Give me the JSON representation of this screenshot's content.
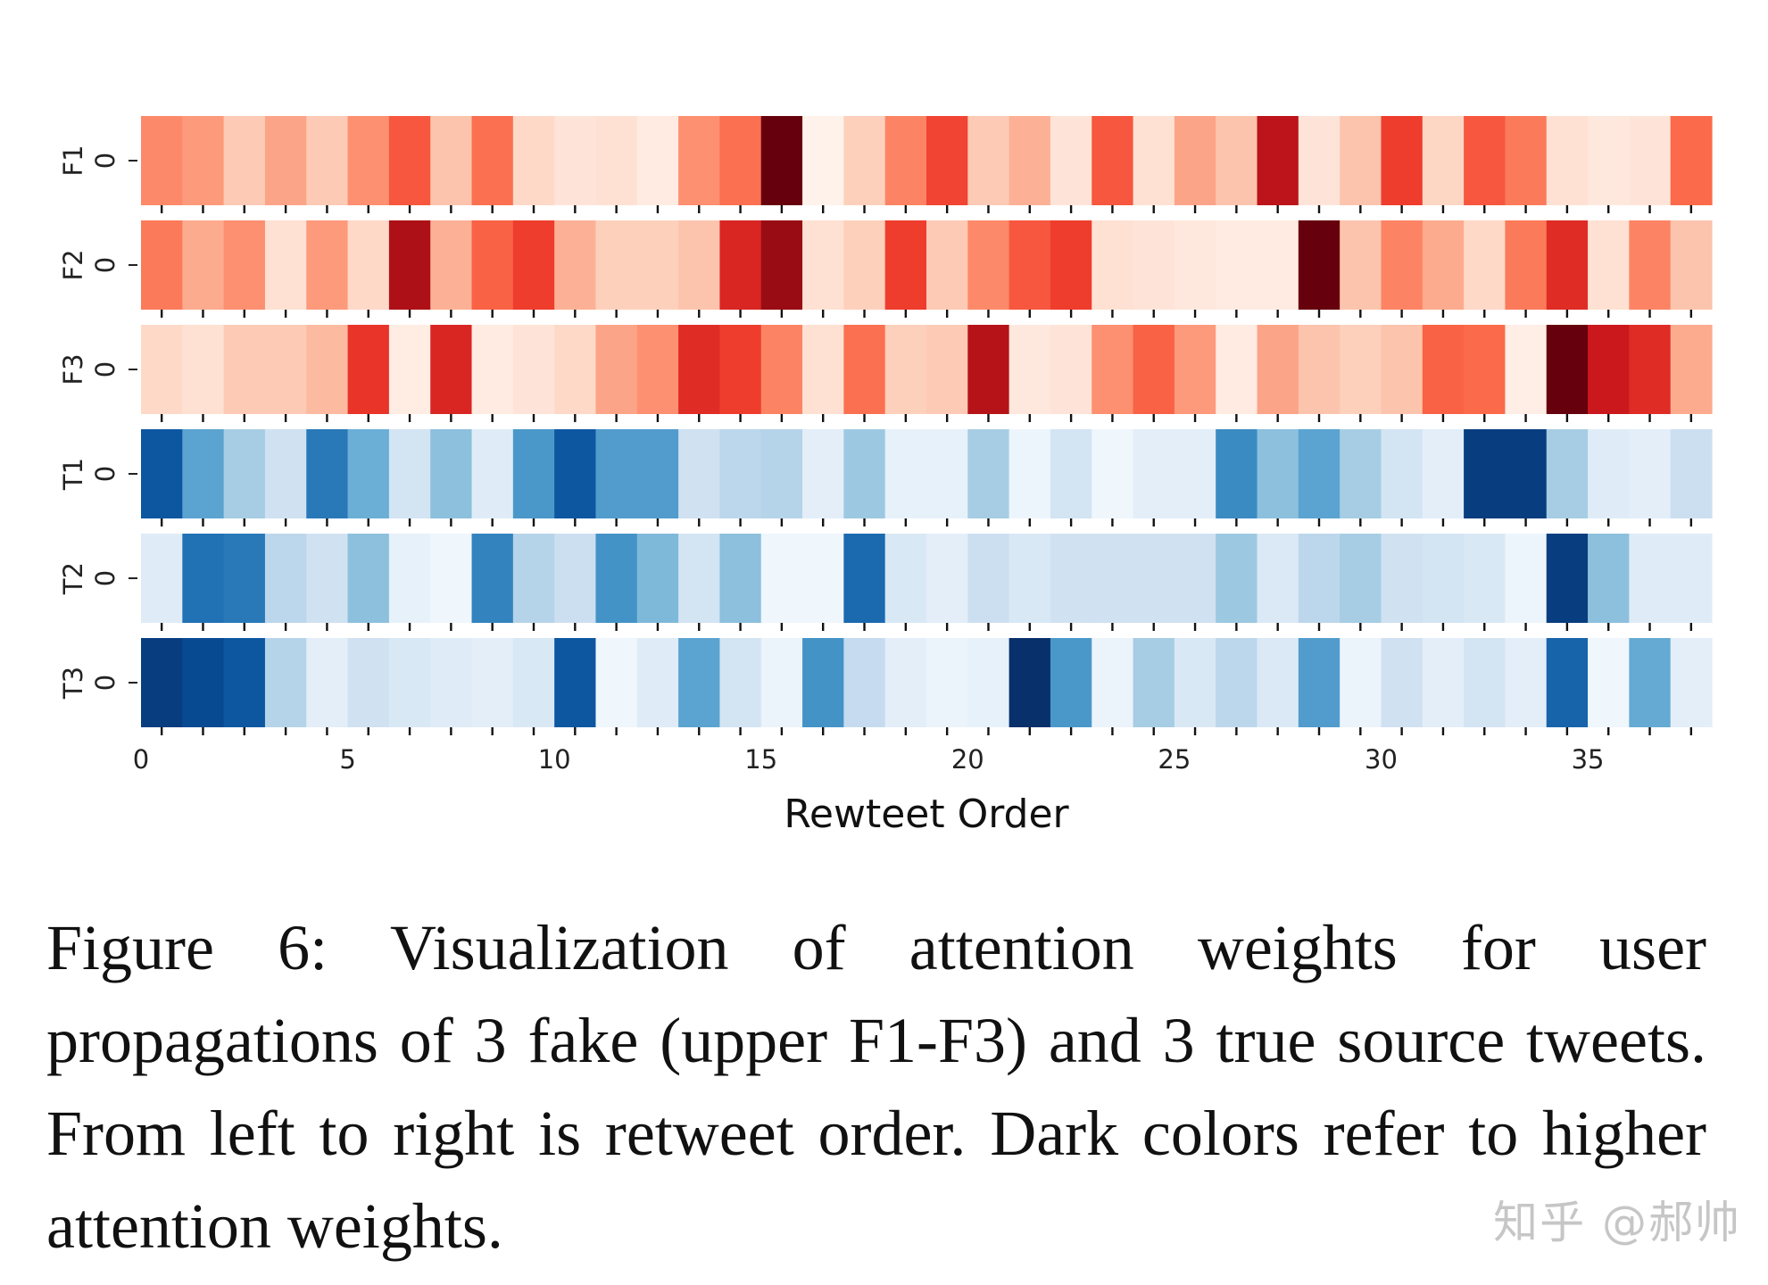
{
  "chart_data": {
    "type": "heatmap",
    "xlabel": "Rewteet Order",
    "x_ticks": [
      0,
      5,
      10,
      15,
      20,
      25,
      30,
      35
    ],
    "n_columns": 38,
    "rows": [
      {
        "name": "F1",
        "tick": "0",
        "palette": "Reds",
        "values": [
          0.4,
          0.35,
          0.2,
          0.32,
          0.2,
          0.38,
          0.55,
          0.22,
          0.48,
          0.15,
          0.1,
          0.12,
          0.06,
          0.38,
          0.48,
          1.0,
          0.02,
          0.18,
          0.42,
          0.6,
          0.2,
          0.28,
          0.1,
          0.55,
          0.12,
          0.32,
          0.22,
          0.8,
          0.1,
          0.22,
          0.62,
          0.16,
          0.55,
          0.45,
          0.12,
          0.08,
          0.1,
          0.5
        ]
      },
      {
        "name": "F2",
        "tick": "0",
        "palette": "Reds",
        "values": [
          0.45,
          0.3,
          0.38,
          0.12,
          0.35,
          0.15,
          0.85,
          0.28,
          0.52,
          0.62,
          0.28,
          0.18,
          0.18,
          0.22,
          0.7,
          0.9,
          0.12,
          0.18,
          0.62,
          0.2,
          0.4,
          0.55,
          0.62,
          0.12,
          0.1,
          0.08,
          0.06,
          0.06,
          1.0,
          0.22,
          0.42,
          0.3,
          0.15,
          0.45,
          0.68,
          0.12,
          0.42,
          0.22
        ]
      },
      {
        "name": "F3",
        "tick": "0",
        "palette": "Reds",
        "values": [
          0.15,
          0.12,
          0.2,
          0.2,
          0.25,
          0.65,
          0.05,
          0.7,
          0.06,
          0.1,
          0.15,
          0.32,
          0.38,
          0.68,
          0.62,
          0.42,
          0.12,
          0.48,
          0.18,
          0.2,
          0.82,
          0.08,
          0.1,
          0.38,
          0.52,
          0.35,
          0.06,
          0.32,
          0.22,
          0.18,
          0.22,
          0.52,
          0.5,
          0.04,
          1.0,
          0.75,
          0.68,
          0.3
        ]
      },
      {
        "name": "T1",
        "tick": "0",
        "palette": "Blues",
        "values": [
          0.85,
          0.55,
          0.35,
          0.2,
          0.72,
          0.5,
          0.18,
          0.42,
          0.12,
          0.6,
          0.85,
          0.58,
          0.58,
          0.2,
          0.28,
          0.3,
          0.1,
          0.38,
          0.08,
          0.08,
          0.35,
          0.05,
          0.18,
          0.04,
          0.1,
          0.1,
          0.65,
          0.42,
          0.55,
          0.35,
          0.18,
          0.1,
          0.95,
          0.95,
          0.35,
          0.12,
          0.1,
          0.22
        ]
      },
      {
        "name": "T2",
        "tick": "0",
        "palette": "Blues",
        "values": [
          0.12,
          0.75,
          0.72,
          0.28,
          0.2,
          0.42,
          0.08,
          0.04,
          0.68,
          0.3,
          0.22,
          0.62,
          0.45,
          0.18,
          0.42,
          0.04,
          0.04,
          0.78,
          0.15,
          0.1,
          0.22,
          0.15,
          0.2,
          0.2,
          0.2,
          0.2,
          0.38,
          0.14,
          0.28,
          0.35,
          0.2,
          0.18,
          0.15,
          0.05,
          0.95,
          0.42,
          0.12,
          0.12
        ]
      },
      {
        "name": "T3",
        "tick": "0",
        "palette": "Blues",
        "values": [
          0.95,
          0.9,
          0.85,
          0.3,
          0.1,
          0.2,
          0.15,
          0.12,
          0.1,
          0.15,
          0.85,
          0.04,
          0.12,
          0.55,
          0.18,
          0.06,
          0.62,
          0.25,
          0.1,
          0.06,
          0.08,
          1.0,
          0.6,
          0.06,
          0.35,
          0.15,
          0.28,
          0.14,
          0.58,
          0.06,
          0.2,
          0.1,
          0.18,
          0.1,
          0.8,
          0.04,
          0.52,
          0.1
        ]
      }
    ]
  },
  "caption": "Figure 6:  Visualization of attention weights for user propagations of 3 fake (upper F1-F3) and 3 true source tweets. From left to right is retweet order. Dark colors refer to higher attention weights.",
  "watermark": "知乎 @郝帅"
}
